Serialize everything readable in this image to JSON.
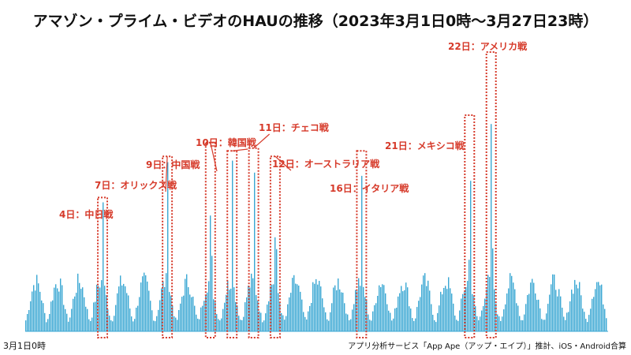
{
  "chart_data": {
    "type": "bar",
    "title": "アマゾン・プライム・ビデオのHAUの推移（2023年3月1日0時〜3月27日23時）",
    "x_start_label": "3月1日0時",
    "x_end": "3月27日23時",
    "source_note": "アプリ分析サービス「App Ape（アップ・エイプ）」推計、iOS・Android合算",
    "bar_color": "#3aa7d3",
    "annotation_color": "#d63a2a",
    "series": [
      {
        "name": "",
        "hours": 648
      }
    ],
    "annotations": [
      {
        "label": "4日：中日戦",
        "day": 4,
        "peak": 0.47
      },
      {
        "label": "7日：オリックス戦",
        "day": 7,
        "peak": 0.62
      },
      {
        "label": "9日：中国戦",
        "day": 9,
        "peak": 0.67
      },
      {
        "label": "10日：韓国戦",
        "day": 10,
        "peak": 0.64
      },
      {
        "label": "11日：チェコ戦",
        "day": 11,
        "peak": 0.65
      },
      {
        "label": "12日：オーストラリア戦",
        "day": 12,
        "peak": 0.62
      },
      {
        "label": "16日：イタリア戦",
        "day": 16,
        "peak": 0.64
      },
      {
        "label": "21日：メキシコ戦",
        "day": 21,
        "peak": 0.77
      },
      {
        "label": "22日：アメリカ戦",
        "day": 22,
        "peak": 1.0
      }
    ]
  }
}
